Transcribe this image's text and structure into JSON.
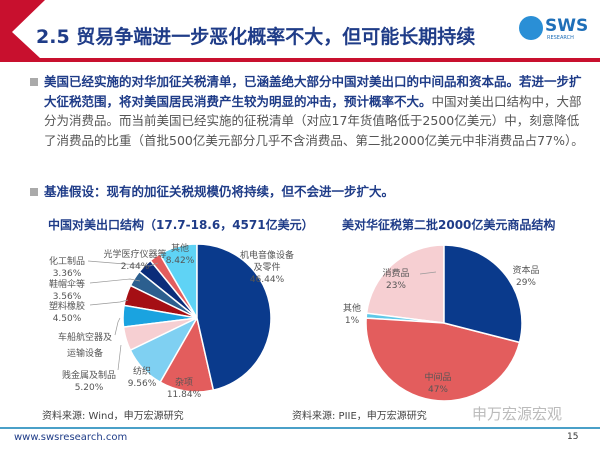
{
  "header": {
    "title": "2.5 贸易争端进一步恶化概率不大，但可能长期持续",
    "logo_text": "SWS",
    "logo_sub": "RESEARCH"
  },
  "bullets": [
    {
      "bold": "美国已经实施的对华加征关税清单，已涵盖绝大部分中国对美出口的中间品和资本品。若进一步扩大征税范围，将对美国居民消费产生较为明显的冲击，预计概率不大。",
      "normal": "中国对美出口结构中，大部分为消费品。而当前美国已经实施的征税清单（对应17年货值略低于2500亿美元）中，刻意降低了消费品的比重（首批500亿美元部分几乎不含消费品、第二批2000亿美元中非消费品占77%）。"
    },
    {
      "bold": "基准假设：现有的加征关税规模仍将持续，但不会进一步扩大。",
      "normal": ""
    }
  ],
  "chart_data": [
    {
      "type": "pie",
      "title": "中国对美出口结构（17.7-18.6，4571亿美元）",
      "source": "资料来源: Wind，申万宏源研究",
      "slices": [
        {
          "label": "机电音像设备及零件",
          "value": 46.44,
          "value_label": "46.44%",
          "color": "#0a3a8c"
        },
        {
          "label": "杂项",
          "value": 11.84,
          "value_label": "11.84%",
          "color": "#e35d5d"
        },
        {
          "label": "纺织",
          "value": 9.56,
          "value_label": "9.56%",
          "color": "#7fd0f2"
        },
        {
          "label": "贱金属及制品",
          "value": 5.2,
          "value_label": "5.20%",
          "color": "#f6cfd2"
        },
        {
          "label": "车船航空器及运输设备",
          "value": 4.68,
          "value_label": "",
          "color": "#1aa3e0"
        },
        {
          "label": "塑料橡胶",
          "value": 4.5,
          "value_label": "4.50%",
          "color": "#a50f14"
        },
        {
          "label": "鞋帽伞等",
          "value": 3.56,
          "value_label": "3.56%",
          "color": "#2c5f8f"
        },
        {
          "label": "化工制品",
          "value": 3.36,
          "value_label": "3.36%",
          "color": "#0b2d7a"
        },
        {
          "label": "光学医疗仪器等",
          "value": 2.44,
          "value_label": "2.44%",
          "color": "#e35d5d"
        },
        {
          "label": "其他",
          "value": 8.42,
          "value_label": "8.42%",
          "color": "#5fd3f5"
        }
      ]
    },
    {
      "type": "pie",
      "title": "美对华征税第二批2000亿美元商品结构",
      "source": "资料来源: PIIE，申万宏源研究",
      "slices": [
        {
          "label": "资本品",
          "value": 29,
          "value_label": "29%",
          "color": "#0a3a8c"
        },
        {
          "label": "中间品",
          "value": 47,
          "value_label": "47%",
          "color": "#e35d5d"
        },
        {
          "label": "其他",
          "value": 1,
          "value_label": "1%",
          "color": "#5fc8e8"
        },
        {
          "label": "消费品",
          "value": 23,
          "value_label": "23%",
          "color": "#f6cfd2"
        }
      ]
    }
  ],
  "footer": {
    "url": "www.swsresearch.com",
    "page": "15",
    "watermark": "申万宏源宏观"
  }
}
